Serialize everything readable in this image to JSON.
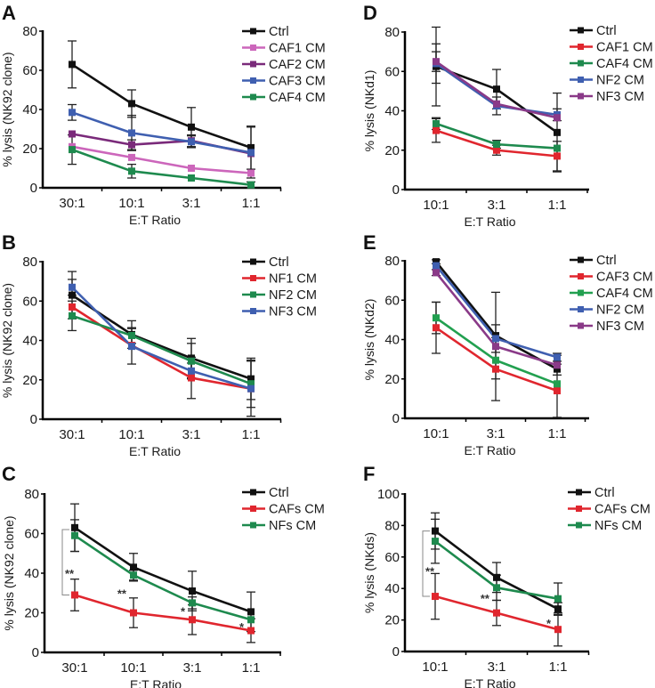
{
  "colors": {
    "Ctrl": "#111111",
    "CAF1 CM": "#cc66bb",
    "CAF2 CM": "#7a2a7a",
    "CAF3 CM": "#3f5fb0",
    "CAF4 CM": "#1e8a4e",
    "NF1 CM": "#e0262e",
    "NF2 CM": "#1e8a4e",
    "NF3 CM": "#3f5fb0",
    "D:CAF1 CM": "#e0262e",
    "D:NF2 CM": "#3f5fb0",
    "D:NF3 CM": "#8a3a88",
    "E:CAF3 CM": "#e0262e",
    "E:CAF4 CM": "#22a050",
    "CAFs CM": "#e0262e",
    "NFs CM": "#1e8a4e"
  },
  "chart_data": [
    {
      "id": "A",
      "type": "line",
      "panel_label": "A",
      "xlabel": "E:T Ratio",
      "ylabel": "% lysis (NK92 clone)",
      "categories": [
        "30:1",
        "10:1",
        "3:1",
        "1:1"
      ],
      "ylim": [
        0,
        80
      ],
      "yticks": [
        0,
        20,
        40,
        60,
        80
      ],
      "legend_position": "top-right",
      "series": [
        {
          "name": "Ctrl",
          "color": "#111111",
          "values": [
            63,
            43,
            31,
            20.5
          ],
          "err": [
            12,
            7,
            10,
            11
          ]
        },
        {
          "name": "CAF1 CM",
          "color": "#cc66bb",
          "values": [
            21,
            15.5,
            10,
            7.5
          ],
          "err": [
            0,
            0,
            0,
            0
          ]
        },
        {
          "name": "CAF2 CM",
          "color": "#7a2a7a",
          "values": [
            27.5,
            22,
            24,
            17.5
          ],
          "err": [
            0,
            2.5,
            3,
            0
          ]
        },
        {
          "name": "CAF3 CM",
          "color": "#3f5fb0",
          "values": [
            38.5,
            28,
            23.5,
            18
          ],
          "err": [
            4,
            9,
            3,
            13
          ]
        },
        {
          "name": "CAF4 CM",
          "color": "#1e8a4e",
          "values": [
            19.5,
            8.5,
            5,
            1.5
          ],
          "err": [
            7.5,
            3.5,
            0,
            1.5
          ]
        }
      ],
      "annotations": []
    },
    {
      "id": "D",
      "type": "line",
      "panel_label": "D",
      "xlabel": "E:T Ratio",
      "ylabel": "% lysis (NKd1)",
      "categories": [
        "10:1",
        "3:1",
        "1:1"
      ],
      "ylim": [
        0,
        80
      ],
      "yticks": [
        0,
        20,
        40,
        60,
        80
      ],
      "legend_position": "top-right",
      "series": [
        {
          "name": "Ctrl",
          "color": "#111111",
          "values": [
            62.5,
            51,
            29
          ],
          "err": [
            20,
            10,
            20
          ]
        },
        {
          "name": "CAF1 CM",
          "color": "#e0262e",
          "values": [
            30,
            20,
            17
          ],
          "err": [
            6,
            2.5,
            7.5
          ]
        },
        {
          "name": "CAF4 CM",
          "color": "#1e8a4e",
          "values": [
            33.5,
            23,
            21
          ],
          "err": [
            3,
            2,
            0
          ]
        },
        {
          "name": "NF2 CM",
          "color": "#3f5fb0",
          "values": [
            64,
            42.5,
            38
          ],
          "err": [
            10,
            4.5,
            3
          ]
        },
        {
          "name": "NF3 CM",
          "color": "#8a3a88",
          "values": [
            65,
            43.5,
            36.5
          ],
          "err": [
            5,
            0,
            0
          ]
        }
      ],
      "annotations": []
    },
    {
      "id": "B",
      "type": "line",
      "panel_label": "B",
      "xlabel": "E:T Ratio",
      "ylabel": "% lysis (NK92 clone)",
      "categories": [
        "30:1",
        "10:1",
        "3:1",
        "1:1"
      ],
      "ylim": [
        0,
        80
      ],
      "yticks": [
        0,
        20,
        40,
        60,
        80
      ],
      "legend_position": "top-right",
      "series": [
        {
          "name": "Ctrl",
          "color": "#111111",
          "values": [
            63,
            43,
            31,
            20.5
          ],
          "err": [
            12,
            7,
            10,
            10.5
          ]
        },
        {
          "name": "NF1 CM",
          "color": "#e0262e",
          "values": [
            57,
            37.5,
            21,
            15.5
          ],
          "err": [
            0,
            0,
            10.5,
            0
          ]
        },
        {
          "name": "NF2 CM",
          "color": "#1e8a4e",
          "values": [
            52.5,
            42.5,
            29.5,
            18
          ],
          "err": [
            7.5,
            4,
            9,
            12
          ]
        },
        {
          "name": "NF3 CM",
          "color": "#3f5fb0",
          "values": [
            67,
            37,
            24.5,
            15.5
          ],
          "err": [
            4,
            9,
            4,
            14
          ]
        }
      ],
      "annotations": []
    },
    {
      "id": "E",
      "type": "line",
      "panel_label": "E",
      "xlabel": "E:T Ratio",
      "ylabel": "% lysis (NKd2)",
      "categories": [
        "10:1",
        "3:1",
        "1:1"
      ],
      "ylim": [
        0,
        80
      ],
      "yticks": [
        0,
        20,
        40,
        60,
        80
      ],
      "legend_position": "top-right",
      "series": [
        {
          "name": "Ctrl",
          "color": "#111111",
          "values": [
            79.5,
            42,
            25
          ],
          "err": [
            1,
            22,
            0
          ]
        },
        {
          "name": "CAF3 CM",
          "color": "#e0262e",
          "values": [
            46,
            25,
            14
          ],
          "err": [
            13,
            16,
            13.5
          ]
        },
        {
          "name": "CAF4 CM",
          "color": "#22a050",
          "values": [
            51,
            29.5,
            17.5
          ],
          "err": [
            8,
            0,
            0
          ]
        },
        {
          "name": "NF2 CM",
          "color": "#3f5fb0",
          "values": [
            77.5,
            40.5,
            31
          ],
          "err": [
            0,
            7,
            2
          ]
        },
        {
          "name": "NF3 CM",
          "color": "#8a3a88",
          "values": [
            74,
            36.5,
            27
          ],
          "err": [
            1.5,
            0,
            5
          ]
        }
      ],
      "annotations": []
    },
    {
      "id": "C",
      "type": "line",
      "panel_label": "C",
      "xlabel": "E:T Ratio",
      "ylabel": "% lysis (NK92 clone)",
      "categories": [
        "30:1",
        "10:1",
        "3:1",
        "1:1"
      ],
      "ylim": [
        0,
        80
      ],
      "yticks": [
        0,
        20,
        40,
        60,
        80
      ],
      "legend_position": "top-right",
      "series": [
        {
          "name": "Ctrl",
          "color": "#111111",
          "values": [
            63,
            43,
            31,
            20.5
          ],
          "err": [
            12,
            7,
            10,
            10
          ]
        },
        {
          "name": "CAFs CM",
          "color": "#e0262e",
          "values": [
            29,
            20,
            16.5,
            11
          ],
          "err": [
            8,
            7.5,
            7.5,
            6
          ]
        },
        {
          "name": "NFs CM",
          "color": "#1e8a4e",
          "values": [
            59,
            39,
            25,
            16.5
          ],
          "err": [
            8,
            2.5,
            3,
            0
          ]
        }
      ],
      "annotations": [
        {
          "text": "**",
          "category": "30:1",
          "y": 40,
          "bracket": [
            29,
            62
          ]
        },
        {
          "text": "**",
          "category": "10:1",
          "y": 30
        },
        {
          "text": "*",
          "category": "3:1",
          "y": 21
        },
        {
          "text": "*",
          "category": "1:1",
          "y": 13
        }
      ]
    },
    {
      "id": "F",
      "type": "line",
      "panel_label": "F",
      "xlabel": "E:T Ratio",
      "ylabel": "% lysis (NKds)",
      "categories": [
        "10:1",
        "3:1",
        "1:1"
      ],
      "ylim": [
        0,
        100
      ],
      "yticks": [
        0,
        20,
        40,
        60,
        80,
        100
      ],
      "legend_position": "top-right",
      "series": [
        {
          "name": "Ctrl",
          "color": "#111111",
          "values": [
            76.5,
            47,
            27
          ],
          "err": [
            11.5,
            9.5,
            4
          ]
        },
        {
          "name": "CAFs CM",
          "color": "#e0262e",
          "values": [
            35,
            24.5,
            14
          ],
          "err": [
            14.5,
            8,
            10.5
          ]
        },
        {
          "name": "NFs CM",
          "color": "#1e8a4e",
          "values": [
            70,
            40.5,
            33.5
          ],
          "err": [
            14,
            8,
            10
          ]
        }
      ],
      "annotations": [
        {
          "text": "**",
          "category": "10:1",
          "y": 51,
          "bracket": [
            35,
            76.5
          ]
        },
        {
          "text": "**",
          "category": "3:1",
          "y": 34
        },
        {
          "text": "*",
          "category": "1:1",
          "y": 18
        }
      ]
    }
  ]
}
